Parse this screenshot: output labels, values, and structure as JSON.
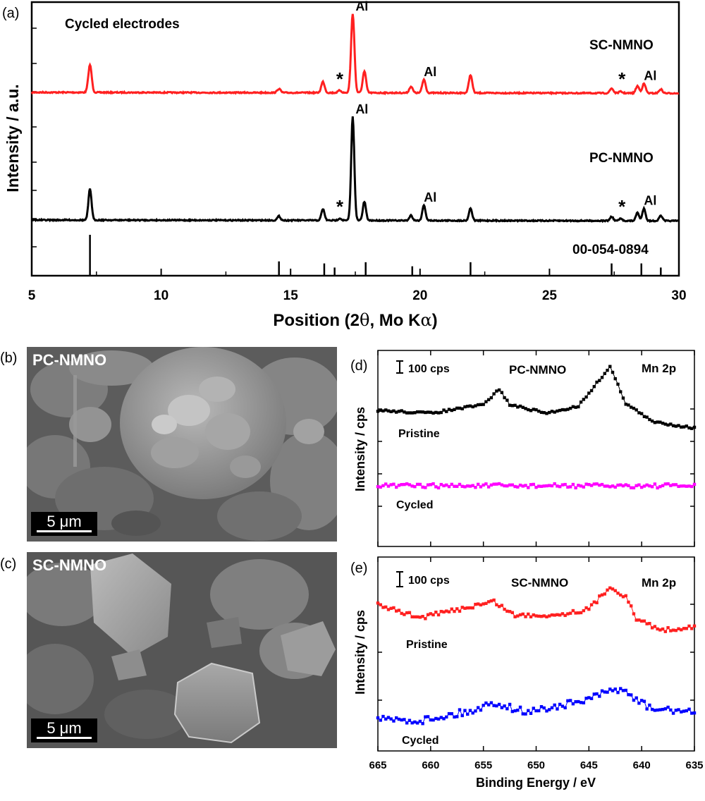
{
  "chart_data": [
    {
      "panel": "(a)",
      "type": "line",
      "annotation_title": "Cycled electrodes",
      "xlabel_main": "Position (2",
      "xlabel_theta": "θ",
      "xlabel_mid": ", Mo K",
      "xlabel_alpha": "α",
      "xlabel_end": ")",
      "ylabel": "Intensity / a.u.",
      "xlim": [
        5,
        30
      ],
      "xticks": [
        "5",
        "10",
        "15",
        "20",
        "25",
        "30"
      ],
      "reference_label": "00-054-0894",
      "reference_lines": [
        {
          "x": 7.25,
          "height": 1.0
        },
        {
          "x": 14.55,
          "height": 0.35
        },
        {
          "x": 16.3,
          "height": 0.3
        },
        {
          "x": 16.7,
          "height": 0.2
        },
        {
          "x": 17.9,
          "height": 0.33
        },
        {
          "x": 19.7,
          "height": 0.23
        },
        {
          "x": 21.95,
          "height": 0.33
        },
        {
          "x": 27.4,
          "height": 0.3
        },
        {
          "x": 28.55,
          "height": 0.3
        },
        {
          "x": 29.3,
          "height": 0.2
        }
      ],
      "marker_symbol": "*",
      "al_label": "Al",
      "series": [
        {
          "name": "SC-NMNO",
          "color": "#ff2020",
          "peaks": [
            {
              "x": 7.25,
              "h": 0.35
            },
            {
              "x": 14.55,
              "h": 0.05
            },
            {
              "x": 16.25,
              "h": 0.14
            },
            {
              "x": 16.9,
              "h": 0.03
            },
            {
              "x": 17.4,
              "h": 1.0
            },
            {
              "x": 17.85,
              "h": 0.27
            },
            {
              "x": 19.65,
              "h": 0.08
            },
            {
              "x": 20.15,
              "h": 0.17
            },
            {
              "x": 21.95,
              "h": 0.23
            },
            {
              "x": 27.4,
              "h": 0.06
            },
            {
              "x": 27.75,
              "h": 0.02
            },
            {
              "x": 28.4,
              "h": 0.09
            },
            {
              "x": 28.65,
              "h": 0.12
            },
            {
              "x": 29.3,
              "h": 0.05
            }
          ],
          "al_marks": [
            17.4,
            20.15,
            28.65
          ],
          "star_marks": [
            16.9,
            27.8
          ]
        },
        {
          "name": "PC-NMNO",
          "color": "#000000",
          "peaks": [
            {
              "x": 7.25,
              "h": 0.3
            },
            {
              "x": 14.55,
              "h": 0.04
            },
            {
              "x": 16.25,
              "h": 0.11
            },
            {
              "x": 16.9,
              "h": 0.02
            },
            {
              "x": 17.4,
              "h": 1.0
            },
            {
              "x": 17.85,
              "h": 0.18
            },
            {
              "x": 19.65,
              "h": 0.05
            },
            {
              "x": 20.15,
              "h": 0.15
            },
            {
              "x": 21.95,
              "h": 0.12
            },
            {
              "x": 27.4,
              "h": 0.04
            },
            {
              "x": 27.75,
              "h": 0.02
            },
            {
              "x": 28.4,
              "h": 0.08
            },
            {
              "x": 28.65,
              "h": 0.12
            },
            {
              "x": 29.3,
              "h": 0.05
            }
          ],
          "al_marks": [
            17.4,
            20.15,
            28.65
          ],
          "star_marks": [
            16.9,
            27.8
          ]
        }
      ]
    },
    {
      "panel": "(d)",
      "type": "scatter",
      "title": "PC-NMNO",
      "region": "Mn 2p",
      "scale_label": "100 cps",
      "ylabel": "Intensity / cps",
      "xlim": [
        665,
        635
      ],
      "series": [
        {
          "name": "Pristine",
          "color": "#000000",
          "baseline": [
            [
              665,
              0
            ],
            [
              660,
              -4
            ],
            [
              655,
              8
            ],
            [
              653.5,
              30
            ],
            [
              652.5,
              8
            ],
            [
              649,
              -4
            ],
            [
              646,
              6
            ],
            [
              643,
              62
            ],
            [
              641.5,
              10
            ],
            [
              639,
              -16
            ],
            [
              635,
              -25
            ]
          ]
        },
        {
          "name": "Cycled",
          "color": "#ff00ff",
          "baseline": [
            [
              665,
              0
            ],
            [
              635,
              0
            ]
          ]
        }
      ]
    },
    {
      "panel": "(e)",
      "type": "scatter",
      "title": "SC-NMNO",
      "region": "Mn 2p",
      "scale_label": "100 cps",
      "ylabel": "Intensity / cps",
      "xlim": [
        665,
        635
      ],
      "xlabel": "Binding Energy / eV",
      "xticks": [
        "665",
        "660",
        "655",
        "650",
        "645",
        "640",
        "635"
      ],
      "series": [
        {
          "name": "Pristine",
          "color": "#ff2020",
          "baseline": [
            [
              665,
              0
            ],
            [
              661,
              -18
            ],
            [
              657,
              -5
            ],
            [
              654,
              5
            ],
            [
              652,
              -15
            ],
            [
              648,
              -14
            ],
            [
              645,
              -6
            ],
            [
              643,
              26
            ],
            [
              641.5,
              12
            ],
            [
              640.5,
              -20
            ],
            [
              638,
              -36
            ],
            [
              635,
              -30
            ]
          ]
        },
        {
          "name": "Cycled",
          "color": "#0000ff",
          "baseline": [
            [
              665,
              -12
            ],
            [
              661,
              -14
            ],
            [
              656,
              0
            ],
            [
              654,
              12
            ],
            [
              651,
              -2
            ],
            [
              646,
              12
            ],
            [
              642,
              32
            ],
            [
              641,
              20
            ],
            [
              639,
              2
            ],
            [
              636,
              0
            ],
            [
              635,
              -4
            ]
          ]
        }
      ]
    }
  ],
  "panel_labels": {
    "a": "(a)",
    "b": "(b)",
    "c": "(c)",
    "d": "(d)",
    "e": "(e)"
  },
  "sem_b": {
    "label": "PC-NMNO",
    "scale": "5 μm"
  },
  "sem_c": {
    "label": "SC-NMNO",
    "scale": "5 μm"
  }
}
